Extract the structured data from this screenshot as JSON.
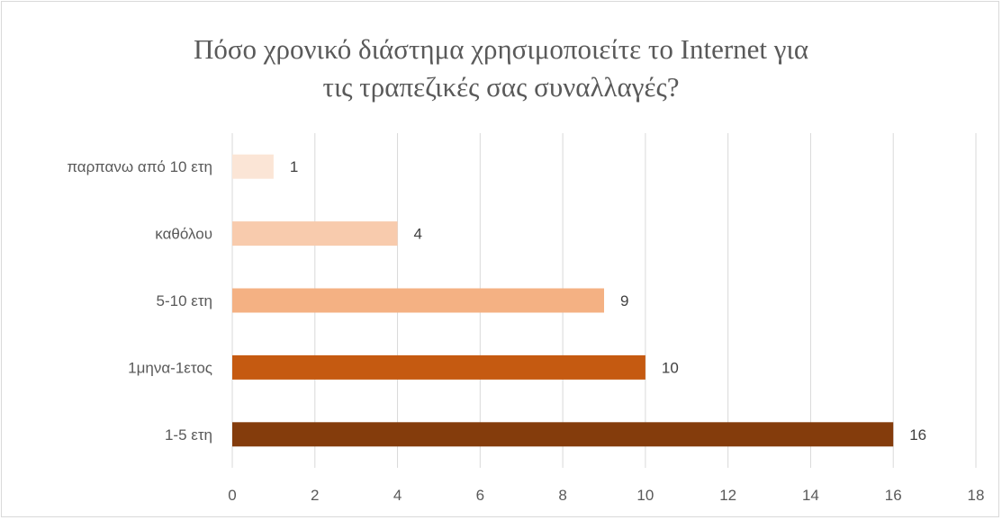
{
  "chart_data": {
    "type": "bar",
    "orientation": "horizontal",
    "title": "Πόσο χρονικό διάστημα  χρησιμοποιείτε το Internet για\nτις τραπεζικές σας συναλλαγές?",
    "categories": [
      "παρπανω από 10 ετη",
      "καθόλου",
      "5-10 ετη",
      "1μηνα-1ετος",
      "1-5 ετη"
    ],
    "values": [
      1,
      4,
      9,
      10,
      16
    ],
    "colors": [
      "#fbe5d6",
      "#f8cbad",
      "#f4b183",
      "#c55a11",
      "#843c0c"
    ],
    "xlim": [
      0,
      18
    ],
    "xticks": [
      0,
      2,
      4,
      6,
      8,
      10,
      12,
      14,
      16,
      18
    ],
    "grid": true,
    "data_labels": true,
    "legend": false
  }
}
